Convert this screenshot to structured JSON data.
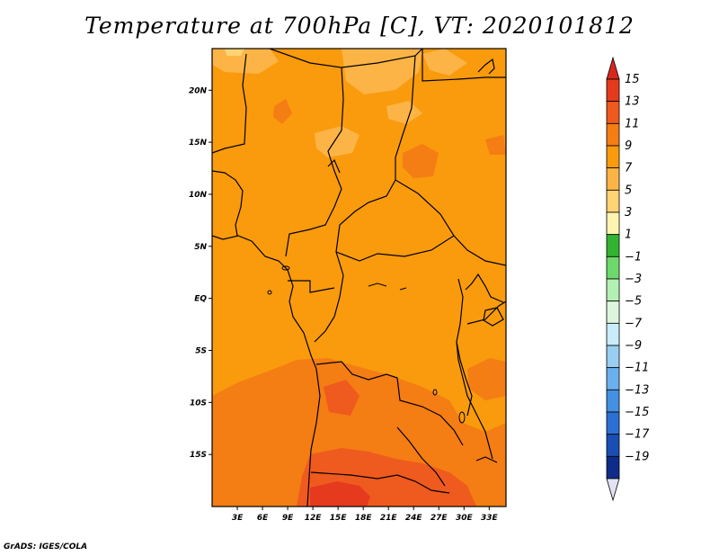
{
  "title": "Temperature at 700hPa [C], VT: 2020101812",
  "credit": "GrADS: IGES/COLA",
  "map": {
    "variable": "Temperature",
    "level": "700hPa",
    "units": "C",
    "valid_time": "2020101812",
    "lon_range": [
      0,
      35
    ],
    "lat_range": [
      -20,
      24
    ],
    "lat_ticks": [
      {
        "value": 20,
        "label": "20N"
      },
      {
        "value": 15,
        "label": "15N"
      },
      {
        "value": 10,
        "label": "10N"
      },
      {
        "value": 5,
        "label": "5N"
      },
      {
        "value": 0,
        "label": "EQ"
      },
      {
        "value": -5,
        "label": "5S"
      },
      {
        "value": -10,
        "label": "10S"
      },
      {
        "value": -15,
        "label": "15S"
      }
    ],
    "lon_ticks": [
      {
        "value": 3,
        "label": "3E"
      },
      {
        "value": 6,
        "label": "6E"
      },
      {
        "value": 9,
        "label": "9E"
      },
      {
        "value": 12,
        "label": "12E"
      },
      {
        "value": 15,
        "label": "15E"
      },
      {
        "value": 18,
        "label": "18E"
      },
      {
        "value": 21,
        "label": "21E"
      },
      {
        "value": 24,
        "label": "24E"
      },
      {
        "value": 27,
        "label": "27E"
      },
      {
        "value": 30,
        "label": "30E"
      },
      {
        "value": 33,
        "label": "33E"
      }
    ]
  },
  "colorbar": {
    "top_color": "#d8281e",
    "bottom_color": "#e2e2f2",
    "levels": [
      {
        "label": "15",
        "color": "#e53a1e"
      },
      {
        "label": "13",
        "color": "#ef5a1e"
      },
      {
        "label": "11",
        "color": "#f47d14"
      },
      {
        "label": "9",
        "color": "#f99b0c"
      },
      {
        "label": "7",
        "color": "#fcb446"
      },
      {
        "label": "5",
        "color": "#fdd373"
      },
      {
        "label": "3",
        "color": "#fdf4b0"
      },
      {
        "label": "1",
        "color": "#32b432"
      },
      {
        "label": "-1",
        "color": "#6dd96d"
      },
      {
        "label": "-3",
        "color": "#b4f0b4"
      },
      {
        "label": "-5",
        "color": "#dcf5dc"
      },
      {
        "label": "-7",
        "color": "#c8ecfa"
      },
      {
        "label": "-9",
        "color": "#98cef2"
      },
      {
        "label": "-11",
        "color": "#6ab0ee"
      },
      {
        "label": "-13",
        "color": "#4490e2"
      },
      {
        "label": "-15",
        "color": "#2c70d4"
      },
      {
        "label": "-17",
        "color": "#1a4eb4"
      },
      {
        "label": "-19",
        "color": "#102c8a"
      }
    ]
  }
}
